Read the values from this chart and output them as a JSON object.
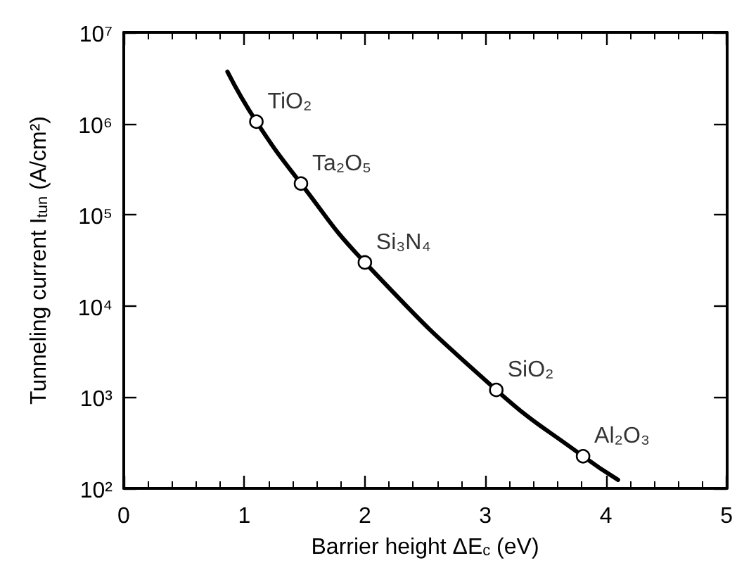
{
  "chart_data": {
    "type": "line",
    "xlabel": "Barrier height ΔE$_{c}$ (eV)",
    "ylabel": "Tunneling current I$_{tun}$ (A/cm²)",
    "log": "y",
    "xlim": [
      0,
      5
    ],
    "xticks": [
      0,
      1,
      2,
      3,
      4,
      5
    ],
    "ylim": [
      100,
      10000000
    ],
    "yticks": [
      {
        "value": 100,
        "label": "10²"
      },
      {
        "value": 1000,
        "label": "10³"
      },
      {
        "value": 10000,
        "label": "10⁴"
      },
      {
        "value": 100000,
        "label": "10⁵"
      },
      {
        "value": 1000000,
        "label": "10⁶"
      },
      {
        "value": 10000000,
        "label": "10⁷"
      }
    ],
    "grid": false,
    "series": [
      {
        "color": "#000000",
        "marker": "none",
        "line_style": "solid",
        "x": [
          0.86,
          1.1,
          1.47,
          2.0,
          3.09,
          3.81,
          4.1
        ],
        "values": [
          3700000,
          1050000,
          220000,
          30000,
          1200,
          225,
          124
        ]
      },
      {
        "type": "scatter",
        "color": "#000000",
        "marker": "circle",
        "x": [
          1.1,
          1.47,
          2.0,
          3.09,
          3.81
        ],
        "values": [
          1050000,
          220000,
          30000,
          1200,
          225
        ]
      }
    ],
    "annotations": [
      {
        "text": "TiO₂",
        "x": 1.1,
        "y": 1050000
      },
      {
        "text": "Ta₂O₅",
        "x": 1.47,
        "y": 220000
      },
      {
        "text": "Si₃N₄",
        "x": 2.0,
        "y": 30000
      },
      {
        "text": "SiO₂",
        "x": 3.09,
        "y": 1200
      },
      {
        "text": "Al₂O₃",
        "x": 3.81,
        "y": 225
      }
    ]
  }
}
